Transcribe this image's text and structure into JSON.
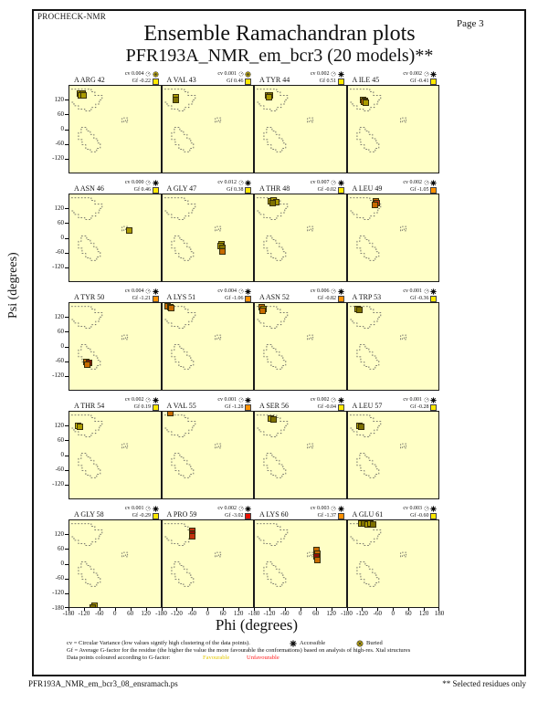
{
  "page": {
    "app_label": "PROCHECK-NMR",
    "page_label": "Page  3",
    "title": "Ensemble Ramachandran plots",
    "subtitle": "PFR193A_NMR_em_bcr3 (20 models)**",
    "footer_left": "PFR193A_NMR_em_bcr3_08_ensramach.ps",
    "footer_right": "** Selected residues only"
  },
  "axes": {
    "xlabel": "Phi (degrees)",
    "ylabel": "Psi (degrees)",
    "x_ticks": [
      -180,
      -120,
      -60,
      0,
      60,
      120
    ],
    "x_end_tick": 180,
    "y_ticks": [
      120,
      60,
      0,
      -60,
      -120
    ],
    "y_end_tick": -180
  },
  "legend": {
    "line1": "cv = Circular Variance (low values signify high clustering of the data points).",
    "accessible_label": "Accessible",
    "buried_label": "Buried",
    "line2": "Gf = Average G-factor for the residue (the higher the value the more favourable the conformations) based on analysis of high-res. Xtal structures",
    "line3": "Data points coloured according to G-factor:",
    "favourable_label": "Favourable",
    "unfavourable_label": "Unfavourable"
  },
  "colors": {
    "plot_bg": "#FFFFC6",
    "region_outline": "#555555",
    "favourable_text": "#E3C700",
    "unfavourable_text": "#FF1A1A",
    "gf_square": {
      "yellow": "#FFE800",
      "orange": "#FF9000",
      "red": "#E81000"
    },
    "points": {
      "yellow": "#D8C800",
      "olive": "#AB9B00",
      "dkolive": "#7D7000",
      "orange": "#C76B00",
      "red": "#C2320E",
      "dkred": "#8F1008"
    }
  },
  "chart_data": {
    "type": "scatter",
    "title": "Ensemble Ramachandran plots",
    "subtitle": "PFR193A_NMR_em_bcr3 (20 models)**",
    "layout": "4 columns x 5 rows of per-residue Ramachandran subplots",
    "xlabel": "Phi (degrees)",
    "ylabel": "Psi (degrees)",
    "xlim": [
      -180,
      180
    ],
    "ylim": [
      -180,
      180
    ],
    "x_ticks": [
      -180,
      -120,
      -60,
      0,
      60,
      120,
      180
    ],
    "y_ticks": [
      -180,
      -120,
      -60,
      0,
      60,
      120
    ],
    "grid": false,
    "plots": [
      {
        "residue": "A ARG 42",
        "cv": "0.004",
        "gf": "-0.22",
        "burial": "buried",
        "gf_color": "yellow",
        "points": [
          [
            -140,
            150,
            "olive"
          ],
          [
            -131,
            151,
            "dkolive"
          ],
          [
            -135,
            142,
            "olive"
          ],
          [
            -127,
            144,
            "olive"
          ]
        ]
      },
      {
        "residue": "A VAL 43",
        "cv": "0.001",
        "gf": "0.46",
        "burial": "buried",
        "gf_color": "yellow",
        "points": [
          [
            -129,
            133,
            "olive"
          ],
          [
            -127,
            124,
            "dkolive"
          ]
        ]
      },
      {
        "residue": "A TYR 44",
        "cv": "0.002",
        "gf": "0.51",
        "burial": "accessible",
        "gf_color": "yellow",
        "points": [
          [
            -129,
            144,
            "olive"
          ],
          [
            -121,
            141,
            "dkolive"
          ],
          [
            -125,
            136,
            "olive"
          ]
        ]
      },
      {
        "residue": "A ILE 45",
        "cv": "0.002",
        "gf": "-0.41",
        "burial": "accessible",
        "gf_color": "yellow",
        "points": [
          [
            -121,
            124,
            "olive"
          ],
          [
            -112,
            121,
            "orange"
          ],
          [
            -117,
            114,
            "orange"
          ],
          [
            -109,
            113,
            "olive"
          ]
        ]
      },
      {
        "residue": "A ASN 46",
        "cv": "0.000",
        "gf": "0.46",
        "burial": "accessible",
        "gf_color": "yellow",
        "points": [
          [
            56,
            33,
            "olive"
          ]
        ]
      },
      {
        "residue": "A GLY 47",
        "cv": "0.012",
        "gf": "0.38",
        "burial": "accessible",
        "gf_color": "yellow",
        "points": [
          [
            54,
            -24,
            "olive"
          ],
          [
            51,
            -33,
            "olive"
          ],
          [
            56,
            -41,
            "dkolive"
          ],
          [
            58,
            -55,
            "orange"
          ]
        ]
      },
      {
        "residue": "A THR 48",
        "cv": "0.007",
        "gf": "-0.02",
        "burial": "accessible",
        "gf_color": "yellow",
        "points": [
          [
            -117,
            153,
            "olive"
          ],
          [
            -107,
            156,
            "olive"
          ],
          [
            -97,
            150,
            "olive"
          ],
          [
            -111,
            145,
            "dkolive"
          ]
        ]
      },
      {
        "residue": "A LEU 49",
        "cv": "0.002",
        "gf": "-1.05",
        "burial": "accessible",
        "gf_color": "orange",
        "points": [
          [
            -71,
            153,
            "orange"
          ],
          [
            -67,
            145,
            "red"
          ],
          [
            -73,
            140,
            "orange"
          ]
        ]
      },
      {
        "residue": "A TYR 50",
        "cv": "0.004",
        "gf": "-1.21",
        "burial": "accessible",
        "gf_color": "orange",
        "points": [
          [
            -114,
            -63,
            "orange"
          ],
          [
            -105,
            -66,
            "dkred"
          ],
          [
            -110,
            -72,
            "orange"
          ]
        ]
      },
      {
        "residue": "A LYS 51",
        "cv": "0.004",
        "gf": "-1.06",
        "burial": "accessible",
        "gf_color": "orange",
        "points": [
          [
            -159,
            170,
            "orange"
          ],
          [
            -150,
            166,
            "dkolive"
          ],
          [
            -144,
            162,
            "orange"
          ]
        ]
      },
      {
        "residue": "A ASN 52",
        "cv": "0.006",
        "gf": "-0.82",
        "burial": "accessible",
        "gf_color": "orange",
        "points": [
          [
            -156,
            163,
            "orange"
          ],
          [
            -147,
            159,
            "olive"
          ],
          [
            -151,
            151,
            "orange"
          ]
        ]
      },
      {
        "residue": "A TRP 53",
        "cv": "0.001",
        "gf": "-0.36",
        "burial": "accessible",
        "gf_color": "yellow",
        "points": [
          [
            -142,
            158,
            "olive"
          ],
          [
            -134,
            153,
            "dkolive"
          ]
        ]
      },
      {
        "residue": "A THR 54",
        "cv": "0.002",
        "gf": "0.19",
        "burial": "accessible",
        "gf_color": "yellow",
        "points": [
          [
            -149,
            122,
            "yellow"
          ],
          [
            -139,
            120,
            "olive"
          ]
        ]
      },
      {
        "residue": "A VAL 55",
        "cv": "0.001",
        "gf": "-1.28",
        "burial": "accessible",
        "gf_color": "orange",
        "points": [
          [
            -150,
            176,
            "orange"
          ]
        ]
      },
      {
        "residue": "A SER 56",
        "cv": "0.002",
        "gf": "-0.04",
        "burial": "accessible",
        "gf_color": "yellow",
        "points": [
          [
            -118,
            153,
            "olive"
          ],
          [
            -109,
            149,
            "dkolive"
          ]
        ]
      },
      {
        "residue": "A LEU 57",
        "cv": "0.001",
        "gf": "-0.28",
        "burial": "accessible",
        "gf_color": "yellow",
        "points": [
          [
            -133,
            122,
            "olive"
          ],
          [
            -126,
            118,
            "dkolive"
          ]
        ]
      },
      {
        "residue": "A GLY 58",
        "cv": "0.001",
        "gf": "-0.29",
        "burial": "accessible",
        "gf_color": "yellow",
        "points": [
          [
            -82,
            -174,
            "olive"
          ],
          [
            -88,
            -179,
            "dkolive"
          ]
        ]
      },
      {
        "residue": "A PRO 59",
        "cv": "0.002",
        "gf": "-3.02",
        "burial": "accessible",
        "gf_color": "red",
        "points": [
          [
            -62,
            139,
            "red"
          ],
          [
            -62,
            127,
            "dkred"
          ],
          [
            -63,
            114,
            "red"
          ]
        ]
      },
      {
        "residue": "A LYS 60",
        "cv": "0.003",
        "gf": "-1.37",
        "burial": "accessible",
        "gf_color": "orange",
        "points": [
          [
            64,
            57,
            "orange"
          ],
          [
            66,
            44,
            "orange"
          ],
          [
            64,
            31,
            "dkred"
          ],
          [
            66,
            18,
            "orange"
          ]
        ]
      },
      {
        "residue": "A GLU 61",
        "cv": "0.003",
        "gf": "-0.60",
        "burial": "accessible",
        "gf_color": "yellow",
        "points": [
          [
            -128,
            167,
            "olive"
          ],
          [
            -116,
            170,
            "dkolive"
          ],
          [
            -104,
            165,
            "olive"
          ],
          [
            -92,
            168,
            "olive"
          ],
          [
            -81,
            166,
            "dkolive"
          ]
        ]
      }
    ]
  }
}
